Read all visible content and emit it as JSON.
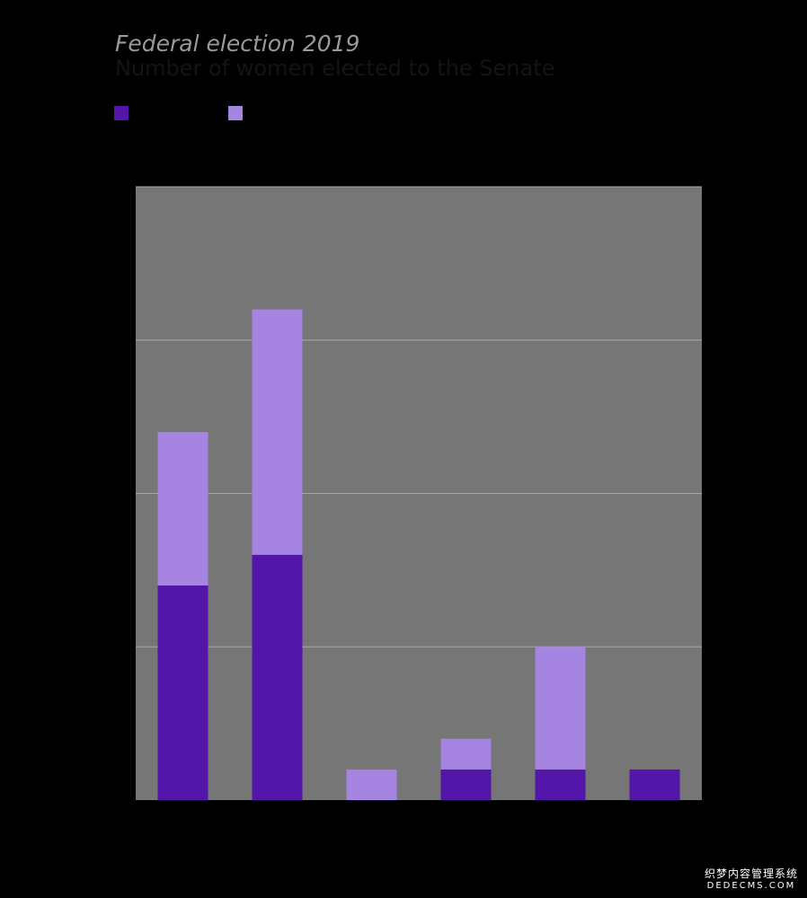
{
  "title": "Federal election 2019",
  "subtitle": "Number of women elected to the Senate",
  "colors": {
    "background": "#000000",
    "plot_background": "#767676",
    "gridline": "#a9a9a9",
    "series_dark": "#5217a8",
    "series_light": "#a584e2"
  },
  "watermark": {
    "line1": "织梦内容管理系统",
    "line2": "DEDECMS.COM"
  },
  "chart_data": {
    "type": "bar",
    "stacked": true,
    "title": "Federal election 2019",
    "subtitle": "Number of women elected to the Senate",
    "categories": [
      "",
      "",
      "",
      "",
      "",
      ""
    ],
    "series": [
      {
        "name": "",
        "color": "#5217a8",
        "values": [
          7,
          8,
          0,
          1,
          1,
          1
        ]
      },
      {
        "name": "",
        "color": "#a584e2",
        "values": [
          5,
          8,
          1,
          1,
          4,
          0
        ]
      }
    ],
    "ylim": [
      0,
      20
    ],
    "yticks": [
      0,
      5,
      10,
      15,
      20
    ],
    "grid": true,
    "legend": "top-left",
    "xlabel": "",
    "ylabel": ""
  }
}
